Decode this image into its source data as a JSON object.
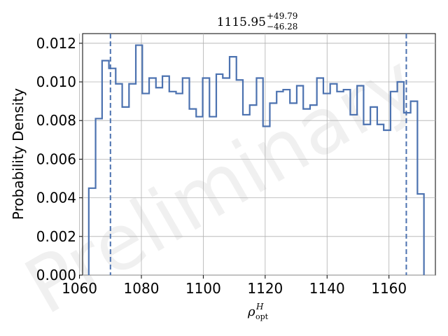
{
  "chart_data": {
    "type": "histogram",
    "title": {
      "value": "1115.95",
      "upper": "+49.79",
      "lower": "−46.28"
    },
    "xlabel": {
      "base": "ρ",
      "sup": "H",
      "sub": "opt"
    },
    "ylabel": "Probability Density",
    "xlim": [
      1061,
      1175
    ],
    "ylim": [
      0,
      0.0125
    ],
    "xticks": [
      1060,
      1080,
      1100,
      1120,
      1140,
      1160
    ],
    "yticks": [
      0.0,
      0.002,
      0.004,
      0.006,
      0.008,
      0.01,
      0.012
    ],
    "ytick_labels": [
      "0.000",
      "0.002",
      "0.004",
      "0.006",
      "0.008",
      "0.010",
      "0.012"
    ],
    "grid": true,
    "series": [
      {
        "color": "#4c72b0",
        "bin_edges": [
          1063.0,
          1065.2,
          1067.3,
          1069.5,
          1071.7,
          1073.8,
          1076.0,
          1078.2,
          1080.3,
          1082.5,
          1084.7,
          1086.8,
          1089.0,
          1091.2,
          1093.3,
          1095.5,
          1097.7,
          1099.8,
          1102.0,
          1104.2,
          1106.3,
          1108.5,
          1110.7,
          1112.8,
          1115.0,
          1117.2,
          1119.3,
          1121.5,
          1123.7,
          1125.8,
          1128.0,
          1130.2,
          1132.3,
          1134.5,
          1136.7,
          1138.8,
          1141.0,
          1143.2,
          1145.3,
          1147.5,
          1149.7,
          1151.8,
          1154.0,
          1156.2,
          1158.3,
          1160.5,
          1162.7,
          1164.8,
          1167.0,
          1169.2,
          1171.3
        ],
        "densities": [
          0.0045,
          0.0081,
          0.0111,
          0.0107,
          0.0099,
          0.0087,
          0.0099,
          0.0119,
          0.0094,
          0.0102,
          0.0097,
          0.0103,
          0.0095,
          0.0094,
          0.0102,
          0.0086,
          0.0082,
          0.0102,
          0.0082,
          0.0104,
          0.0102,
          0.0113,
          0.0101,
          0.0083,
          0.0088,
          0.0102,
          0.0077,
          0.0089,
          0.0095,
          0.0096,
          0.0089,
          0.0098,
          0.0086,
          0.0088,
          0.0102,
          0.0094,
          0.0099,
          0.0095,
          0.0096,
          0.0083,
          0.0098,
          0.0078,
          0.0087,
          0.0078,
          0.0075,
          0.0095,
          0.01,
          0.0084,
          0.009,
          0.0042
        ]
      }
    ],
    "vlines": [
      {
        "x": 1070.0,
        "style": "dashed",
        "color": "#4c72b0"
      },
      {
        "x": 1165.6,
        "style": "dashed",
        "color": "#4c72b0"
      }
    ],
    "watermark": "Preliminary"
  }
}
